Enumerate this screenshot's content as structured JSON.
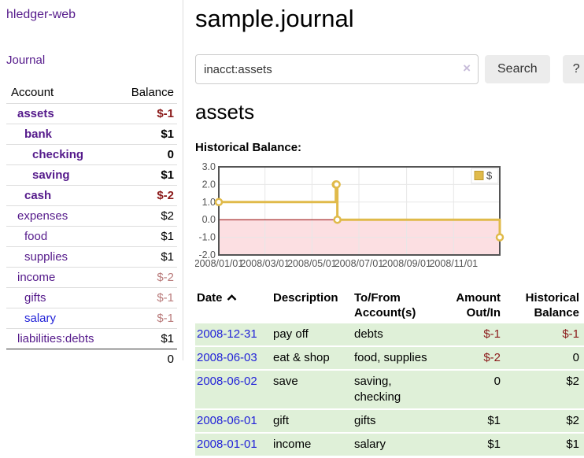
{
  "sidebar": {
    "app_title": "hledger-web",
    "journal_label": "Journal",
    "accounts": {
      "headers": {
        "account": "Account",
        "balance": "Balance"
      },
      "rows": [
        {
          "name": "assets",
          "indent": 1,
          "bold": true,
          "name_style": "purple",
          "balance": "$-1",
          "balance_style": "neg-strong"
        },
        {
          "name": "bank",
          "indent": 2,
          "bold": true,
          "name_style": "purple",
          "balance": "$1",
          "balance_style": ""
        },
        {
          "name": "checking",
          "indent": 3,
          "bold": true,
          "name_style": "purple",
          "balance": "0",
          "balance_style": ""
        },
        {
          "name": "saving",
          "indent": 3,
          "bold": true,
          "name_style": "purple",
          "balance": "$1",
          "balance_style": ""
        },
        {
          "name": "cash",
          "indent": 2,
          "bold": true,
          "name_style": "purple",
          "balance": "$-2",
          "balance_style": "neg-strong"
        },
        {
          "name": "expenses",
          "indent": 1,
          "bold": false,
          "name_style": "purple",
          "balance": "$2",
          "balance_style": ""
        },
        {
          "name": "food",
          "indent": 2,
          "bold": false,
          "name_style": "purple",
          "balance": "$1",
          "balance_style": ""
        },
        {
          "name": "supplies",
          "indent": 2,
          "bold": false,
          "name_style": "purple",
          "balance": "$1",
          "balance_style": ""
        },
        {
          "name": "income",
          "indent": 1,
          "bold": false,
          "name_style": "purple",
          "balance": "$-2",
          "balance_style": "neg-soft"
        },
        {
          "name": "gifts",
          "indent": 2,
          "bold": false,
          "name_style": "purple",
          "balance": "$-1",
          "balance_style": "neg-soft"
        },
        {
          "name": "salary",
          "indent": 2,
          "bold": false,
          "name_style": "blue",
          "balance": "$-1",
          "balance_style": "neg-soft"
        },
        {
          "name": "liabilities:debts",
          "indent": 1,
          "bold": false,
          "name_style": "purple",
          "balance": "$1",
          "balance_style": ""
        }
      ],
      "total": "0"
    }
  },
  "header": {
    "title": "sample.journal"
  },
  "search": {
    "query": "inacct:assets",
    "clear_icon": "×",
    "button_label": "Search",
    "help_label": "?"
  },
  "register": {
    "heading": "assets",
    "chart_label": "Historical Balance:",
    "table": {
      "headers": {
        "date": "Date",
        "description": "Description",
        "accounts": "To/From Account(s)",
        "amount": "Amount Out/In",
        "balance": "Historical Balance"
      },
      "rows": [
        {
          "date": "2008-12-31",
          "description": "pay off",
          "accounts": "debts",
          "amount": "$-1",
          "amount_neg": true,
          "balance": "$-1",
          "balance_neg": true
        },
        {
          "date": "2008-06-03",
          "description": "eat & shop",
          "accounts": "food, supplies",
          "amount": "$-2",
          "amount_neg": true,
          "balance": "0",
          "balance_neg": false
        },
        {
          "date": "2008-06-02",
          "description": "save",
          "accounts": "saving, checking",
          "amount": "0",
          "amount_neg": false,
          "balance": "$2",
          "balance_neg": false
        },
        {
          "date": "2008-06-01",
          "description": "gift",
          "accounts": "gifts",
          "amount": "$1",
          "amount_neg": false,
          "balance": "$2",
          "balance_neg": false
        },
        {
          "date": "2008-01-01",
          "description": "income",
          "accounts": "salary",
          "amount": "$1",
          "amount_neg": false,
          "balance": "$1",
          "balance_neg": false
        }
      ]
    }
  },
  "chart_data": {
    "type": "line",
    "title": "Historical Balance",
    "step": true,
    "series": [
      {
        "name": "$",
        "color": "#e0ba4a",
        "points": [
          {
            "x": "2008-01-01",
            "y": 1
          },
          {
            "x": "2008-06-01",
            "y": 2
          },
          {
            "x": "2008-06-02",
            "y": 2
          },
          {
            "x": "2008-06-03",
            "y": 0
          },
          {
            "x": "2008-12-31",
            "y": -1
          }
        ]
      }
    ],
    "xlim": [
      "2008-01-01",
      "2008-12-31"
    ],
    "ylim": [
      -2,
      3
    ],
    "x_ticks": [
      "2008/01/01",
      "2008/03/01",
      "2008/05/01",
      "2008/07/01",
      "2008/09/01",
      "2008/11/01"
    ],
    "y_tick_labels": [
      "3.0",
      "2.0",
      "1.0",
      "0.0",
      "-1.0",
      "-2.0"
    ],
    "y_tick_values": [
      3,
      2,
      1,
      0,
      -1,
      -2
    ],
    "grid": true,
    "negative_region_color": "#fcdfe2",
    "zero_line_color": "#9e1a1a",
    "grid_color": "#e7e7e7",
    "border_color": "#545454",
    "axis_text_color": "#545454",
    "legend": {
      "label": "$",
      "position": "top-right"
    }
  }
}
